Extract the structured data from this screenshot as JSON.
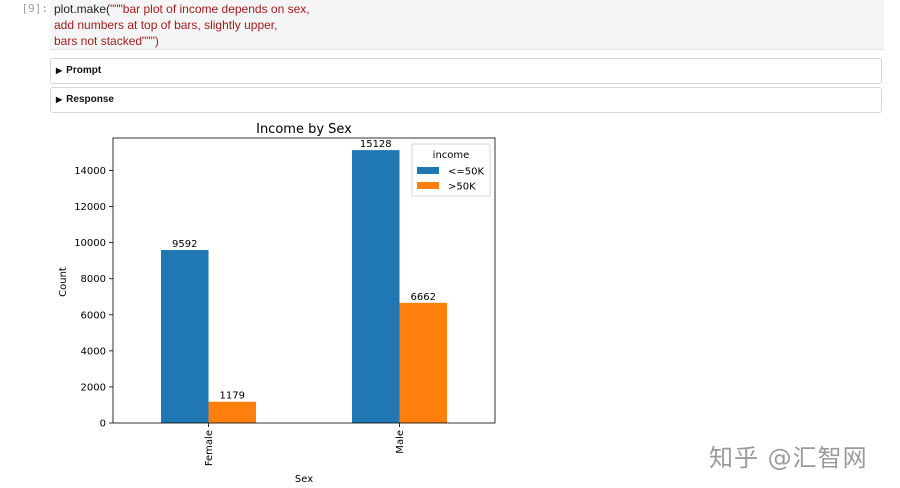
{
  "cell": {
    "prompt": "[9]:",
    "code_fn": "plot.make(",
    "code_line1": "\"\"\"bar plot of income depends on sex,",
    "code_line2": "add numbers at top of bars, slightly upper,",
    "code_line3": "bars not stacked\"\"\")"
  },
  "outputs": {
    "prompt_label": "Prompt",
    "response_label": "Response"
  },
  "watermark": "知乎 @汇智网",
  "chart_data": {
    "type": "bar",
    "title": "Income by Sex",
    "xlabel": "Sex",
    "ylabel": "Count",
    "categories": [
      "Female",
      "Male"
    ],
    "series": [
      {
        "name": "<=50K",
        "values": [
          9592,
          15128
        ],
        "color": "#1f77b4"
      },
      {
        "name": ">50K",
        "values": [
          1179,
          6662
        ],
        "color": "#ff7f0e"
      }
    ],
    "ylim": [
      0,
      15800
    ],
    "yticks": [
      0,
      2000,
      4000,
      6000,
      8000,
      10000,
      12000,
      14000
    ],
    "legend_title": "income",
    "legend_position": "top-right",
    "grid": false
  }
}
